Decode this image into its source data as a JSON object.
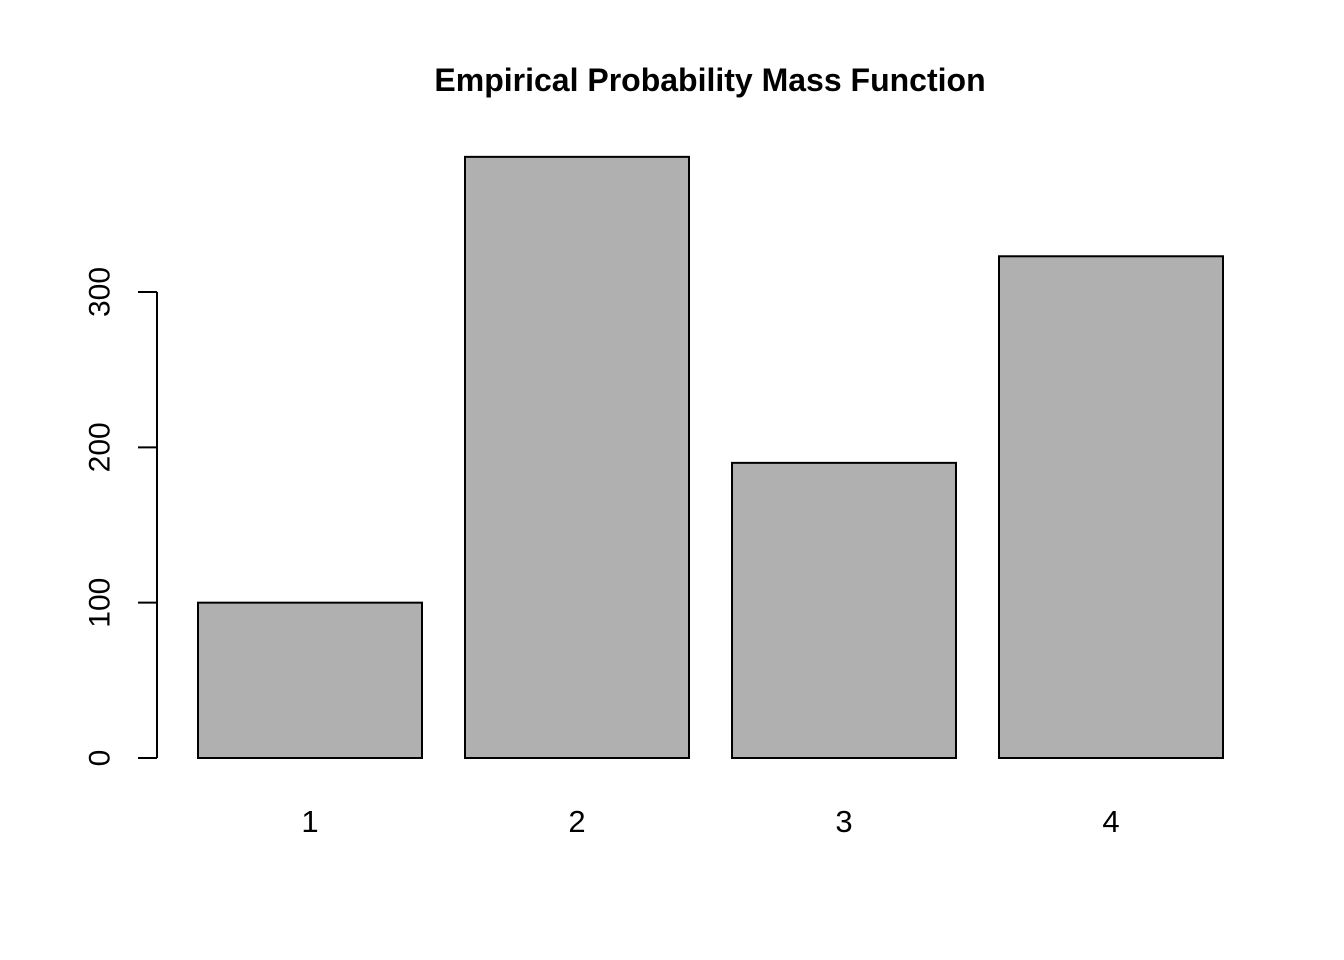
{
  "chart_data": {
    "type": "bar",
    "title": "Empirical Probability Mass Function",
    "categories": [
      "1",
      "2",
      "3",
      "4"
    ],
    "values": [
      100,
      387,
      190,
      323
    ],
    "xlabel": "",
    "ylabel": "",
    "yticks": [
      0,
      100,
      200,
      300
    ],
    "ylim": [
      0,
      390
    ],
    "grid": false,
    "legend": "none",
    "colors": {
      "bar_fill": "#b0b0b0",
      "bar_border": "#000000",
      "axis": "#000000",
      "text": "#000000",
      "background": "#ffffff"
    }
  }
}
